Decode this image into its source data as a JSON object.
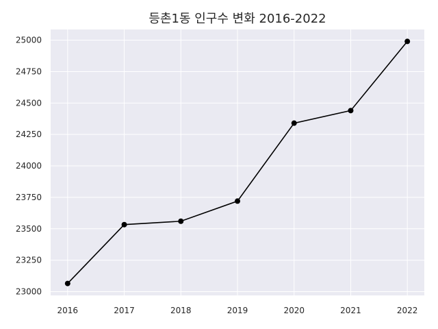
{
  "chart_data": {
    "type": "line",
    "title": "등촌1동 인구수 변화 2016-2022",
    "xlabel": "",
    "ylabel": "",
    "x": [
      2016,
      2017,
      2018,
      2019,
      2020,
      2021,
      2022
    ],
    "series": [
      {
        "values": [
          23065,
          23533,
          23560,
          23720,
          24340,
          24440,
          24990
        ]
      }
    ],
    "xticks": [
      "2016",
      "2017",
      "2018",
      "2019",
      "2020",
      "2021",
      "2022"
    ],
    "yticks": [
      "23000",
      "23250",
      "23500",
      "23750",
      "24000",
      "24250",
      "24500",
      "24750",
      "25000"
    ],
    "ylim": [
      22970,
      25085
    ],
    "xlim": [
      2015.7,
      2022.3
    ],
    "grid": true,
    "colors": {
      "background": "#eaeaf2",
      "grid": "#ffffff",
      "line": "#000000",
      "marker": "#000000"
    }
  }
}
